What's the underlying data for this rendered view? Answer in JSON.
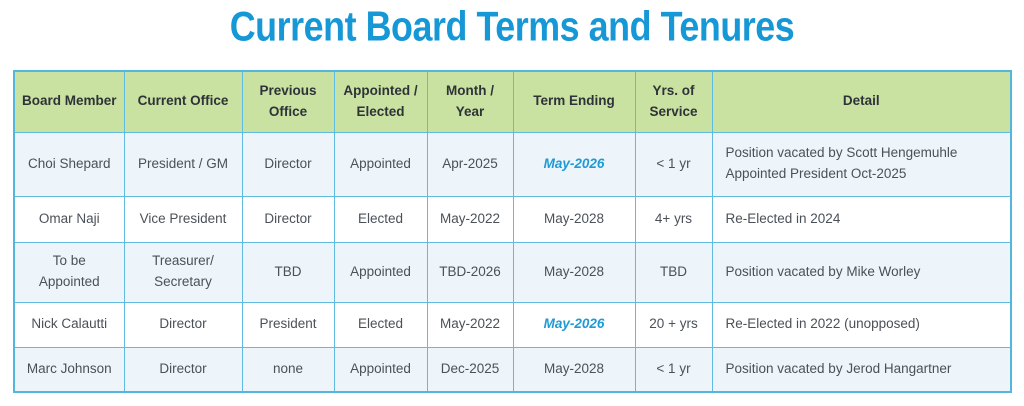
{
  "title": "Current Board Terms and Tenures",
  "colors": {
    "title_blue": "#1798d6",
    "header_green": "#c9e1a1",
    "grid_border_blue": "#5fbbdf",
    "stripe_light_blue": "#edf4fa",
    "term_highlight_blue": "#1e9ad6",
    "body_text": "#4a5158"
  },
  "table": {
    "headers": {
      "member": "Board Member",
      "current_office": "Current Office",
      "previous_office": "Previous Office",
      "appointed_elected": "Appointed / Elected",
      "month_year": "Month / Year",
      "term_ending": "Term Ending",
      "yrs_service": "Yrs. of Service",
      "detail": "Detail"
    },
    "rows": [
      {
        "member": "Choi Shepard",
        "current_office": "President / GM",
        "previous_office": "Director",
        "appointed_elected": "Appointed",
        "month_year": "Apr-2025",
        "term_ending": "May-2026",
        "term_ending_highlighted": true,
        "yrs_service": "< 1 yr",
        "detail": "Position vacated by Scott Hengemuhle\nAppointed President Oct-2025"
      },
      {
        "member": "Omar Naji",
        "current_office": "Vice President",
        "previous_office": "Director",
        "appointed_elected": "Elected",
        "month_year": "May-2022",
        "term_ending": "May-2028",
        "term_ending_highlighted": false,
        "yrs_service": "4+ yrs",
        "detail": "Re-Elected in 2024"
      },
      {
        "member": "To be\nAppointed",
        "current_office": "Treasurer/\nSecretary",
        "previous_office": "TBD",
        "appointed_elected": "Appointed",
        "month_year": "TBD-2026",
        "term_ending": "May-2028",
        "term_ending_highlighted": false,
        "yrs_service": "TBD",
        "detail": "Position vacated by Mike Worley"
      },
      {
        "member": "Nick Calautti",
        "current_office": "Director",
        "previous_office": "President",
        "appointed_elected": "Elected",
        "month_year": "May-2022",
        "term_ending": "May-2026",
        "term_ending_highlighted": true,
        "yrs_service": "20 + yrs",
        "detail": "Re-Elected in 2022 (unopposed)"
      },
      {
        "member": "Marc Johnson",
        "current_office": "Director",
        "previous_office": "none",
        "appointed_elected": "Appointed",
        "month_year": "Dec-2025",
        "term_ending": "May-2028",
        "term_ending_highlighted": false,
        "yrs_service": "< 1 yr",
        "detail": "Position vacated by Jerod Hangartner"
      }
    ]
  }
}
